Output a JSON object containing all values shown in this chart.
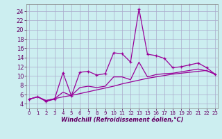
{
  "xlabel": "Windchill (Refroidissement éolien,°C)",
  "background_color": "#cceef0",
  "grid_color": "#aaaacc",
  "line_color": "#990099",
  "x_tick_labels": [
    "0",
    "1",
    "2",
    "3",
    "4",
    "5",
    "6",
    "7",
    "8",
    "9",
    "10",
    "11",
    "12",
    "13",
    "15",
    "16",
    "17",
    "18",
    "19",
    "20",
    "21",
    "22",
    "23"
  ],
  "x_tick_pos": [
    0,
    1,
    2,
    3,
    4,
    5,
    6,
    7,
    8,
    9,
    10,
    11,
    12,
    13,
    14,
    15,
    16,
    17,
    18,
    19,
    20,
    21,
    22
  ],
  "y_ticks": [
    4,
    6,
    8,
    10,
    12,
    14,
    16,
    18,
    20,
    22,
    24
  ],
  "ylim": [
    3.0,
    25.5
  ],
  "xlim": [
    -0.3,
    22.3
  ],
  "series_bottom_x": [
    0,
    1,
    2,
    3,
    4,
    5,
    6,
    7,
    8,
    9,
    10,
    11,
    12,
    13,
    14,
    15,
    16,
    17,
    18,
    19,
    20,
    21,
    22
  ],
  "series_bottom_y": [
    5.0,
    5.5,
    4.7,
    5.1,
    5.5,
    5.8,
    6.2,
    6.6,
    7.0,
    7.4,
    7.8,
    8.3,
    8.7,
    9.1,
    9.5,
    9.8,
    10.1,
    10.4,
    10.6,
    10.8,
    11.0,
    11.2,
    10.4
  ],
  "series_mid_x": [
    0,
    1,
    2,
    3,
    4,
    5,
    6,
    7,
    8,
    9,
    10,
    11,
    12,
    13,
    14,
    15,
    16,
    17,
    18,
    19,
    20,
    21,
    22
  ],
  "series_mid_y": [
    5.0,
    5.5,
    4.7,
    5.1,
    6.5,
    5.8,
    7.5,
    7.8,
    7.5,
    7.8,
    9.8,
    9.8,
    9.2,
    13.0,
    9.8,
    10.3,
    10.5,
    10.6,
    10.9,
    11.2,
    11.5,
    11.1,
    10.4
  ],
  "series_top_x": [
    0,
    1,
    2,
    3,
    4,
    5,
    6,
    7,
    8,
    9,
    10,
    11,
    12,
    13,
    14,
    15,
    16,
    17,
    18,
    19,
    20,
    21,
    22
  ],
  "series_top_y": [
    5.0,
    5.5,
    4.5,
    5.0,
    10.7,
    5.7,
    10.8,
    11.0,
    10.2,
    10.5,
    15.0,
    14.8,
    13.0,
    24.5,
    14.7,
    14.4,
    13.8,
    11.8,
    12.0,
    12.4,
    12.8,
    11.8,
    10.4
  ]
}
